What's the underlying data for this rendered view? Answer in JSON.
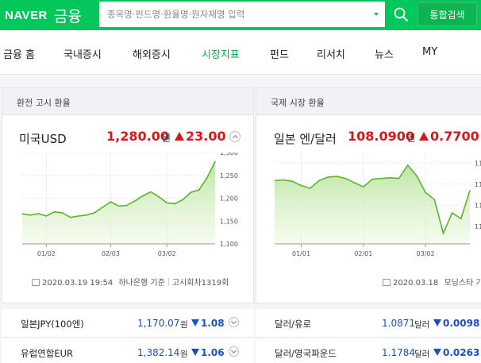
{
  "header": {
    "logo_brand": "NAVER",
    "logo_section": "금융",
    "search_placeholder": "종목명·펀드명·환율명·원자재명 입력",
    "search_button_icon": "search-icon",
    "integrated_search_label": "통합검색"
  },
  "nav": {
    "items": [
      {
        "label": "금융 홈"
      },
      {
        "label": "국내증시"
      },
      {
        "label": "해외증시"
      },
      {
        "label": "시장지표"
      },
      {
        "label": "펀드"
      },
      {
        "label": "리서치"
      },
      {
        "label": "뉴스"
      },
      {
        "label": "MY"
      }
    ],
    "active_index": 3
  },
  "left_panel": {
    "heading": "환전 고시 환율",
    "currency_name": "미국USD",
    "value": "1,280.00",
    "unit": "원",
    "change": "23.00",
    "meta_datetime": "2020.03.19 19:54",
    "meta_source": "하나은행 기준",
    "meta_round": "고시회차1319회",
    "chart_y_ticks": [
      "1,300",
      "1,250",
      "1,200",
      "1,150",
      "1,100"
    ],
    "chart_x_ticks": [
      "01/02",
      "02/03",
      "03/02"
    ]
  },
  "right_panel": {
    "heading": "국제 시장 환율",
    "currency_name": "일본 엔/달러",
    "value": "108.0900",
    "unit": "엔",
    "change": "0.7700",
    "meta_datetime": "2020.03.18",
    "meta_source": "모닝스타 기",
    "chart_y_ticks": [
      "11",
      "11",
      "11",
      "11"
    ],
    "chart_x_ticks": [
      "01/01",
      "02/01",
      "03/02"
    ]
  },
  "left_rows": [
    {
      "name": "일본JPY(100엔)",
      "value": "1,170.07",
      "unit": "원",
      "change": "1.08"
    },
    {
      "name": "유럽연합EUR",
      "value": "1,382.14",
      "unit": "원",
      "change": "1.06"
    }
  ],
  "right_rows": [
    {
      "name": "달러/유로",
      "value": "1.0871",
      "unit": "달러",
      "change": "0.0098"
    },
    {
      "name": "달러/영국파운드",
      "value": "1.1784",
      "unit": "달러",
      "change": "0.0263"
    }
  ],
  "colors": {
    "brand_green": "#03c75a",
    "up_red": "#d4181b",
    "down_blue": "#1a4fc0",
    "chart_line": "#58b52c"
  },
  "chart_data": [
    {
      "type": "area",
      "x": [
        "12/19",
        "12/23",
        "12/27",
        "01/02",
        "01/06",
        "01/10",
        "01/14",
        "01/18",
        "01/22",
        "01/26",
        "01/30",
        "02/03",
        "02/07",
        "02/11",
        "02/15",
        "02/19",
        "02/23",
        "02/27",
        "03/02",
        "03/05",
        "03/08",
        "03/11",
        "03/14",
        "03/17",
        "03/19"
      ],
      "y": [
        1166,
        1163,
        1166,
        1161,
        1170,
        1168,
        1158,
        1161,
        1163,
        1168,
        1180,
        1192,
        1183,
        1184,
        1194,
        1205,
        1214,
        1203,
        1190,
        1188,
        1197,
        1213,
        1218,
        1245,
        1280
      ],
      "xticks": [
        "01/02",
        "02/03",
        "03/02"
      ],
      "ylim": [
        1100,
        1300
      ],
      "grid": true
    },
    {
      "type": "area",
      "x": [
        "12/19",
        "12/23",
        "12/27",
        "01/01",
        "01/06",
        "01/10",
        "01/14",
        "01/18",
        "01/22",
        "01/26",
        "02/01",
        "02/05",
        "02/09",
        "02/13",
        "02/17",
        "02/21",
        "02/25",
        "03/02",
        "03/05",
        "03/09",
        "03/12",
        "03/15",
        "03/18"
      ],
      "y": [
        109.5,
        109.6,
        109.4,
        108.8,
        108.4,
        109.5,
        110.0,
        110.1,
        109.8,
        109.2,
        108.6,
        109.7,
        109.8,
        109.9,
        109.8,
        111.7,
        110.2,
        107.8,
        106.8,
        102.0,
        104.9,
        104.1,
        108.09
      ],
      "xticks": [
        "01/01",
        "02/01",
        "03/02"
      ],
      "grid": true
    }
  ]
}
